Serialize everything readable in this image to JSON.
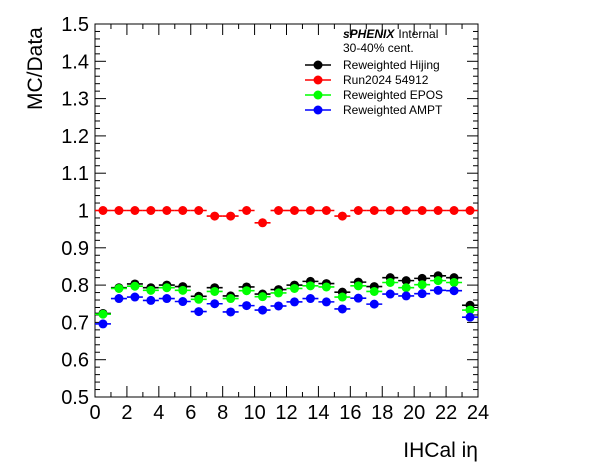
{
  "chart_data": {
    "type": "scatter",
    "xlabel": "IHCal iη",
    "ylabel": "MC/Data",
    "xlim": [
      0,
      24
    ],
    "ylim": [
      0.5,
      1.5
    ],
    "xticks": [
      "0",
      "2",
      "4",
      "6",
      "8",
      "10",
      "12",
      "14",
      "16",
      "18",
      "20",
      "22",
      "24"
    ],
    "yticks": [
      "0.5",
      "0.6",
      "0.7",
      "0.8",
      "0.9",
      "1",
      "1.1",
      "1.2",
      "1.3",
      "1.4",
      "1.5"
    ],
    "legend_header": {
      "brand": "sPHENIX",
      "status": "Internal",
      "centrality": "30-40% cent."
    },
    "legend_position": "top-right",
    "x": [
      0.5,
      1.5,
      2.5,
      3.5,
      4.5,
      5.5,
      6.5,
      7.5,
      8.5,
      9.5,
      10.5,
      11.5,
      12.5,
      13.5,
      14.5,
      15.5,
      16.5,
      17.5,
      18.5,
      19.5,
      20.5,
      21.5,
      22.5,
      23.5
    ],
    "series": [
      {
        "name": "Reweighted Hijing",
        "color": "#000000",
        "values": [
          0.724,
          0.793,
          0.803,
          0.793,
          0.8,
          0.796,
          0.77,
          0.793,
          0.771,
          0.795,
          0.776,
          0.788,
          0.8,
          0.81,
          0.804,
          0.781,
          0.808,
          0.796,
          0.82,
          0.812,
          0.818,
          0.825,
          0.82,
          0.746
        ]
      },
      {
        "name": "Run2024 54912",
        "color": "#ff0000",
        "values": [
          1.0,
          1.0,
          1.0,
          1.0,
          1.0,
          1.0,
          1.0,
          0.985,
          0.985,
          1.0,
          0.967,
          1.0,
          1.0,
          1.0,
          1.0,
          0.985,
          1.0,
          1.0,
          1.0,
          1.0,
          1.0,
          1.0,
          1.0,
          1.0
        ]
      },
      {
        "name": "Reweighted EPOS",
        "color": "#00ff00",
        "values": [
          0.722,
          0.791,
          0.797,
          0.786,
          0.793,
          0.786,
          0.762,
          0.783,
          0.764,
          0.785,
          0.769,
          0.779,
          0.791,
          0.798,
          0.795,
          0.768,
          0.798,
          0.783,
          0.807,
          0.793,
          0.801,
          0.812,
          0.807,
          0.733
        ]
      },
      {
        "name": "Reweighted AMPT",
        "color": "#0000ff",
        "values": [
          0.696,
          0.764,
          0.768,
          0.759,
          0.764,
          0.756,
          0.729,
          0.75,
          0.728,
          0.745,
          0.733,
          0.744,
          0.755,
          0.764,
          0.755,
          0.736,
          0.765,
          0.749,
          0.776,
          0.771,
          0.777,
          0.786,
          0.785,
          0.714
        ]
      }
    ]
  }
}
